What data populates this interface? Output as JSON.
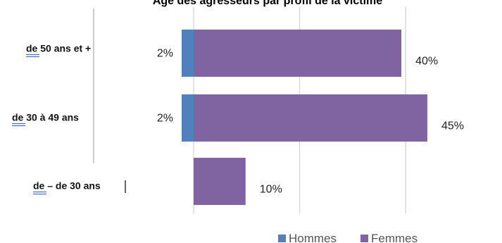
{
  "chart_data": {
    "type": "bar",
    "orientation": "horizontal",
    "stacked": true,
    "title": "Âge des agresseurs par profil de la victime",
    "categories": [
      "de 50 ans et +",
      "de 30 à 49 ans",
      "de – de 30 ans"
    ],
    "series": [
      {
        "name": "Hommes",
        "values": [
          2,
          2,
          0
        ],
        "labels": [
          "2%",
          "2%",
          ""
        ],
        "color": "#4f81bd"
      },
      {
        "name": "Femmes",
        "values": [
          40,
          45,
          10
        ],
        "labels": [
          "40%",
          "45%",
          "10%"
        ],
        "color": "#8064a2"
      }
    ],
    "xlim": [
      0,
      55
    ],
    "grid": true,
    "legend_position": "bottom-right"
  }
}
